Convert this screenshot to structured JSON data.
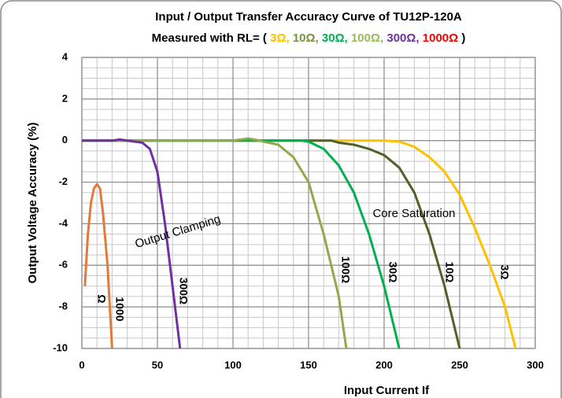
{
  "chart_data": {
    "type": "line",
    "title": "Input / Output Transfer Accuracy Curve of  TU12P-120A",
    "subtitle_prefix": "Measured with RL= (",
    "subtitle_separator": ",",
    "subtitle_suffix": ")",
    "x_label": "Input Current If",
    "y_label": "Output Voltage Accuracy (%)",
    "xlim": [
      0,
      300
    ],
    "ylim": [
      -10,
      4
    ],
    "xticks": [
      0,
      50,
      100,
      150,
      200,
      250,
      300
    ],
    "yticks": [
      -10,
      -8,
      -6,
      -4,
      -2,
      0,
      2,
      4
    ],
    "grid": true,
    "series": [
      {
        "name": "3Ω",
        "color": "#ffc000",
        "text_color": "#ffc000",
        "x": [
          0,
          195,
          200,
          210,
          220,
          230,
          240,
          250,
          260,
          270,
          280,
          287
        ],
        "values": [
          0,
          0,
          0,
          -0.05,
          -0.3,
          -0.8,
          -1.5,
          -2.6,
          -4.2,
          -6.0,
          -8.0,
          -10
        ]
      },
      {
        "name": "10Ω",
        "color": "#4f6228",
        "text_color": "#77933c",
        "x": [
          0,
          165,
          170,
          180,
          190,
          200,
          210,
          220,
          230,
          240,
          250
        ],
        "values": [
          0,
          0,
          -0.1,
          -0.2,
          -0.4,
          -0.7,
          -1.3,
          -2.5,
          -4.5,
          -7.0,
          -10
        ]
      },
      {
        "name": "30Ω",
        "color": "#00b050",
        "text_color": "#00b050",
        "x": [
          0,
          145,
          150,
          160,
          170,
          180,
          190,
          200,
          210
        ],
        "values": [
          0,
          0,
          -0.05,
          -0.4,
          -1.2,
          -2.5,
          -4.5,
          -7.0,
          -10
        ]
      },
      {
        "name": "100Ω",
        "color": "#8faa4c",
        "text_color": "#9bbb59",
        "x": [
          0,
          100,
          110,
          118,
          120,
          130,
          140,
          150,
          160,
          170,
          175
        ],
        "values": [
          0,
          0,
          0.1,
          0,
          -0.05,
          -0.2,
          -0.8,
          -2.0,
          -4.5,
          -7.5,
          -10
        ]
      },
      {
        "name": "300Ω",
        "color": "#7030a0",
        "text_color": "#7030a0",
        "x": [
          0,
          20,
          25,
          30,
          40,
          45,
          50,
          55,
          60,
          65
        ],
        "values": [
          0,
          0,
          0.05,
          0,
          -0.1,
          -0.4,
          -1.5,
          -4.0,
          -7.0,
          -10
        ]
      },
      {
        "name": "1000Ω",
        "color": "#e07b39",
        "text_color": "#ff0000",
        "x": [
          2,
          4,
          6,
          8,
          10,
          12,
          14,
          17,
          20
        ],
        "values": [
          -7,
          -4.5,
          -3.0,
          -2.3,
          -2.1,
          -2.3,
          -3.5,
          -6.0,
          -10
        ]
      }
    ],
    "annotations": [
      {
        "text": "Output Clamping",
        "color": "#ff0000"
      },
      {
        "text": "Core Saturation",
        "color": "#ff0000"
      },
      {
        "text": "3Ω",
        "color": "#ffc000"
      },
      {
        "text": "10Ω",
        "color": "#4f6228"
      },
      {
        "text": "30Ω",
        "color": "#00b050"
      },
      {
        "text": "100Ω",
        "color": "#77933c"
      },
      {
        "text": "300Ω",
        "color": "#7030a0"
      },
      {
        "text": "1000",
        "color": "#ff0000"
      },
      {
        "text": "Ω",
        "color": "#ff0000"
      }
    ]
  }
}
